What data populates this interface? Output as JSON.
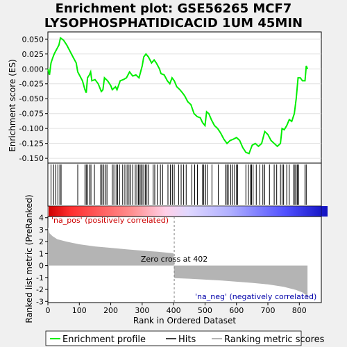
{
  "title_line1": "Enrichment plot: GSE56265 MCF7",
  "title_line2": "LYSOPHOSPHATIDICACID  1UM 45MIN",
  "chart_data": {
    "type": "line",
    "x_axis": {
      "label": "Rank in Ordered Dataset",
      "range": [
        0,
        870
      ],
      "ticks": [
        0,
        100,
        200,
        300,
        400,
        500,
        600,
        700,
        800
      ]
    },
    "es_panel": {
      "ylabel": "Enrichment score (ES)",
      "ylim": [
        -0.158,
        0.062
      ],
      "ticks": [
        0.05,
        0.025,
        0.0,
        -0.025,
        -0.05,
        -0.075,
        -0.1,
        -0.125,
        -0.15
      ],
      "tick_labels": [
        "0.050",
        "0.025",
        "0.000",
        "-0.025",
        "-0.050",
        "-0.075",
        "-0.100",
        "-0.125",
        "-0.150"
      ],
      "series": [
        {
          "name": "Enrichment profile",
          "color": "#00ee00",
          "points": [
            [
              0,
              0.0
            ],
            [
              5,
              -0.01
            ],
            [
              10,
              0.01
            ],
            [
              15,
              0.018
            ],
            [
              20,
              0.025
            ],
            [
              25,
              0.03
            ],
            [
              30,
              0.035
            ],
            [
              35,
              0.04
            ],
            [
              40,
              0.052
            ],
            [
              50,
              0.048
            ],
            [
              60,
              0.04
            ],
            [
              70,
              0.03
            ],
            [
              80,
              0.02
            ],
            [
              90,
              0.01
            ],
            [
              95,
              -0.005
            ],
            [
              100,
              -0.01
            ],
            [
              110,
              -0.02
            ],
            [
              118,
              -0.035
            ],
            [
              122,
              -0.04
            ],
            [
              126,
              -0.015
            ],
            [
              132,
              -0.01
            ],
            [
              136,
              -0.005
            ],
            [
              140,
              -0.02
            ],
            [
              150,
              -0.018
            ],
            [
              160,
              -0.025
            ],
            [
              170,
              -0.038
            ],
            [
              175,
              -0.035
            ],
            [
              180,
              -0.015
            ],
            [
              190,
              -0.02
            ],
            [
              200,
              -0.028
            ],
            [
              205,
              -0.035
            ],
            [
              215,
              -0.03
            ],
            [
              220,
              -0.035
            ],
            [
              230,
              -0.02
            ],
            [
              240,
              -0.018
            ],
            [
              250,
              -0.015
            ],
            [
              260,
              -0.005
            ],
            [
              270,
              -0.012
            ],
            [
              280,
              -0.01
            ],
            [
              290,
              -0.015
            ],
            [
              300,
              0.005
            ],
            [
              305,
              0.02
            ],
            [
              312,
              0.025
            ],
            [
              320,
              0.02
            ],
            [
              330,
              0.01
            ],
            [
              338,
              0.015
            ],
            [
              345,
              0.01
            ],
            [
              355,
              0.0
            ],
            [
              360,
              -0.008
            ],
            [
              370,
              -0.01
            ],
            [
              380,
              -0.02
            ],
            [
              388,
              -0.025
            ],
            [
              395,
              -0.015
            ],
            [
              402,
              -0.02
            ],
            [
              410,
              -0.03
            ],
            [
              420,
              -0.035
            ],
            [
              428,
              -0.04
            ],
            [
              435,
              -0.045
            ],
            [
              445,
              -0.055
            ],
            [
              455,
              -0.06
            ],
            [
              465,
              -0.075
            ],
            [
              475,
              -0.08
            ],
            [
              485,
              -0.082
            ],
            [
              492,
              -0.09
            ],
            [
              500,
              -0.095
            ],
            [
              505,
              -0.072
            ],
            [
              512,
              -0.075
            ],
            [
              520,
              -0.085
            ],
            [
              530,
              -0.095
            ],
            [
              540,
              -0.1
            ],
            [
              550,
              -0.108
            ],
            [
              560,
              -0.118
            ],
            [
              570,
              -0.125
            ],
            [
              580,
              -0.12
            ],
            [
              590,
              -0.118
            ],
            [
              600,
              -0.115
            ],
            [
              610,
              -0.12
            ],
            [
              620,
              -0.132
            ],
            [
              630,
              -0.14
            ],
            [
              640,
              -0.142
            ],
            [
              650,
              -0.128
            ],
            [
              660,
              -0.125
            ],
            [
              670,
              -0.13
            ],
            [
              680,
              -0.125
            ],
            [
              690,
              -0.105
            ],
            [
              700,
              -0.11
            ],
            [
              710,
              -0.12
            ],
            [
              720,
              -0.125
            ],
            [
              730,
              -0.13
            ],
            [
              740,
              -0.125
            ],
            [
              745,
              -0.1
            ],
            [
              752,
              -0.102
            ],
            [
              760,
              -0.095
            ],
            [
              768,
              -0.085
            ],
            [
              776,
              -0.088
            ],
            [
              784,
              -0.075
            ],
            [
              790,
              -0.05
            ],
            [
              796,
              -0.015
            ],
            [
              803,
              -0.015
            ],
            [
              810,
              -0.02
            ],
            [
              818,
              -0.02
            ],
            [
              822,
              0.005
            ],
            [
              826,
              0.0
            ]
          ]
        }
      ]
    },
    "hits_panel": {
      "series_name": "Hits",
      "hits": [
        10,
        18,
        25,
        32,
        38,
        42,
        95,
        118,
        122,
        126,
        133,
        137,
        148,
        168,
        172,
        178,
        183,
        188,
        205,
        210,
        217,
        222,
        228,
        238,
        245,
        252,
        258,
        263,
        270,
        278,
        283,
        288,
        292,
        296,
        300,
        305,
        310,
        315,
        320,
        335,
        340,
        348,
        358,
        365,
        382,
        390,
        396,
        402,
        416,
        424,
        432,
        440,
        458,
        467,
        476,
        492,
        496,
        502,
        507,
        522,
        542,
        565,
        570,
        574,
        582,
        588,
        594,
        600,
        604,
        630,
        638,
        644,
        648,
        653,
        663,
        674,
        684,
        690,
        705,
        720,
        728,
        740,
        745,
        750,
        760,
        768,
        782,
        786,
        790,
        794,
        798,
        818,
        822
      ]
    },
    "heatmap_bar": {
      "colors": [
        "#ff0000",
        "#ffffff",
        "#0000ff"
      ],
      "description_label": "'na_pos' (positively correlated)"
    },
    "metric_panel": {
      "ylabel": "Ranked list metric (PreRanked)",
      "ylim": [
        -3.1,
        4.1
      ],
      "ticks": [
        4,
        3,
        2,
        1,
        0,
        -1,
        -2,
        -3
      ],
      "tick_labels": [
        "4",
        "3",
        "2",
        "1",
        "0",
        "-1",
        "-2",
        "-3"
      ],
      "zero_cross_label": "Zero cross at 402",
      "zero_cross": 402,
      "pos_label": "'na_pos' (positively correlated)",
      "neg_label": "'na_neg' (negatively correlated)",
      "series_name": "Ranking metric scores",
      "points": [
        [
          0,
          3.2
        ],
        [
          5,
          2.7
        ],
        [
          15,
          2.45
        ],
        [
          30,
          2.2
        ],
        [
          60,
          2.0
        ],
        [
          100,
          1.78
        ],
        [
          150,
          1.6
        ],
        [
          200,
          1.48
        ],
        [
          250,
          1.36
        ],
        [
          300,
          1.25
        ],
        [
          350,
          1.15
        ],
        [
          400,
          1.02
        ],
        [
          402,
          -1.05
        ],
        [
          450,
          -1.1
        ],
        [
          500,
          -1.18
        ],
        [
          550,
          -1.25
        ],
        [
          600,
          -1.35
        ],
        [
          650,
          -1.45
        ],
        [
          700,
          -1.58
        ],
        [
          750,
          -1.78
        ],
        [
          790,
          -2.05
        ],
        [
          810,
          -2.25
        ],
        [
          820,
          -2.45
        ],
        [
          826,
          -2.9
        ]
      ]
    },
    "legend": {
      "items": [
        "Enrichment profile",
        "Hits",
        "Ranking metric scores"
      ],
      "placement": "bottom"
    }
  }
}
